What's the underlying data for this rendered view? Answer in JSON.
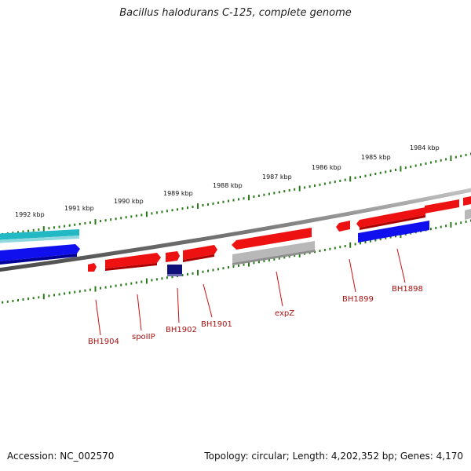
{
  "title": "Bacillus halodurans C-125, complete genome",
  "footer": {
    "accession": "Accession: NC_002570",
    "summary": "Topology: circular; Length: 4,202,352 bp; Genes: 4,170"
  },
  "colors": {
    "backbone": "#7a7a7a",
    "tick": "#2a7a1a",
    "forward_gene": "#ee1111",
    "reverse_gene": "#1010ee",
    "rna": "#22b8c4",
    "other": "#b8b8b8",
    "highlight": "#10107a",
    "gene_label": "#aa1111"
  },
  "kbp_labels": [
    "1984 kbp",
    "1985 kbp",
    "1986 kbp",
    "1987 kbp",
    "1988 kbp",
    "1989 kbp",
    "1990 kbp",
    "1991 kbp",
    "1992 kbp"
  ],
  "genes": [
    {
      "name": "BH1898",
      "type": "reverse_gene"
    },
    {
      "name": "BH1899",
      "type": "forward_gene"
    },
    {
      "name": "expZ",
      "type": "other"
    },
    {
      "name": "BH1901",
      "type": "forward_gene"
    },
    {
      "name": "BH1902",
      "type": "highlight"
    },
    {
      "name": "spoIIP",
      "type": "forward_gene"
    },
    {
      "name": "BH1904",
      "type": "forward_gene"
    }
  ]
}
